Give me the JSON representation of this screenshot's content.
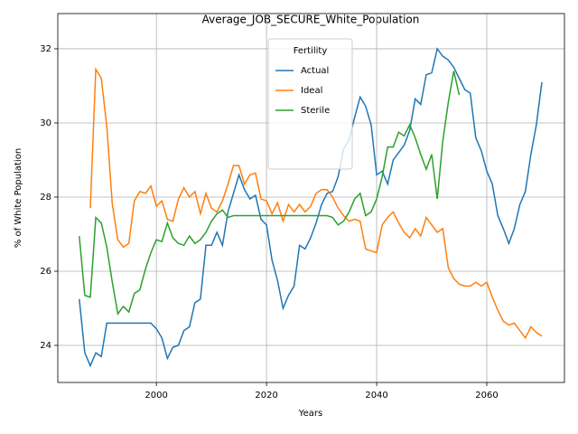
{
  "chart_data": {
    "type": "line",
    "title": "Average_JOB_SECURE_White_Population",
    "xlabel": "Years",
    "ylabel": "% of White Population",
    "x": [
      1986,
      1987,
      1988,
      1989,
      1990,
      1991,
      1992,
      1993,
      1994,
      1995,
      1996,
      1997,
      1998,
      1999,
      2000,
      2001,
      2002,
      2003,
      2004,
      2005,
      2006,
      2007,
      2008,
      2009,
      2010,
      2011,
      2012,
      2013,
      2014,
      2015,
      2016,
      2017,
      2018,
      2019,
      2020,
      2021,
      2022,
      2023,
      2024,
      2025,
      2026,
      2027,
      2028,
      2029,
      2030,
      2031,
      2032,
      2033,
      2034,
      2035,
      2036,
      2037,
      2038,
      2039,
      2040,
      2041,
      2042,
      2043,
      2044,
      2045,
      2046,
      2047,
      2048,
      2049,
      2050,
      2051,
      2052,
      2053,
      2054,
      2055,
      2056,
      2057,
      2058,
      2059,
      2060,
      2061,
      2062,
      2063,
      2064,
      2065,
      2066,
      2067,
      2068,
      2069,
      2070
    ],
    "series": [
      {
        "name": "Actual",
        "color": "#1f77b4",
        "values": [
          25.25,
          23.8,
          23.45,
          23.8,
          23.7,
          24.6,
          24.6,
          24.6,
          24.6,
          24.6,
          24.6,
          24.6,
          24.6,
          24.6,
          24.45,
          24.2,
          23.65,
          23.95,
          24.0,
          24.4,
          24.5,
          25.15,
          25.25,
          26.7,
          26.7,
          27.05,
          26.7,
          27.6,
          28.1,
          28.6,
          28.2,
          27.95,
          28.05,
          27.4,
          27.25,
          26.3,
          25.75,
          25.0,
          25.35,
          25.6,
          26.7,
          26.6,
          26.9,
          27.3,
          27.8,
          28.1,
          28.15,
          28.55,
          29.3,
          29.55,
          30.15,
          30.7,
          30.45,
          29.95,
          28.6,
          28.7,
          28.35,
          29.0,
          29.2,
          29.4,
          29.8,
          30.65,
          30.5,
          31.3,
          31.35,
          32.0,
          31.8,
          31.7,
          31.5,
          31.2,
          30.9,
          30.8,
          29.6,
          29.25,
          28.7,
          28.35,
          27.5,
          27.15,
          26.75,
          27.15,
          27.8,
          28.15,
          29.15,
          29.95,
          31.1
        ]
      },
      {
        "name": "Ideal",
        "color": "#ff7f0e",
        "values": [
          null,
          null,
          27.7,
          31.45,
          31.2,
          29.9,
          27.8,
          26.85,
          26.65,
          26.75,
          27.9,
          28.15,
          28.1,
          28.3,
          27.75,
          27.9,
          27.4,
          27.35,
          27.95,
          28.25,
          28.0,
          28.15,
          27.55,
          28.1,
          27.7,
          27.6,
          27.9,
          28.35,
          28.85,
          28.85,
          28.35,
          28.6,
          28.65,
          27.95,
          27.9,
          27.55,
          27.85,
          27.35,
          27.8,
          27.6,
          27.8,
          27.6,
          27.75,
          28.1,
          28.2,
          28.2,
          28.0,
          27.7,
          27.5,
          27.35,
          27.4,
          27.35,
          26.6,
          26.55,
          26.5,
          27.25,
          27.45,
          27.6,
          27.3,
          27.05,
          26.9,
          27.15,
          26.95,
          27.45,
          27.25,
          27.05,
          27.15,
          26.1,
          25.8,
          25.65,
          25.6,
          25.6,
          25.7,
          25.6,
          25.7,
          25.3,
          24.95,
          24.65,
          24.55,
          24.6,
          24.4,
          24.2,
          24.5,
          24.35,
          24.25
        ]
      },
      {
        "name": "Sterile",
        "color": "#2ca02c",
        "values": [
          26.95,
          25.35,
          25.3,
          27.45,
          27.3,
          26.65,
          25.7,
          24.85,
          25.05,
          24.9,
          25.4,
          25.5,
          26.05,
          26.5,
          26.85,
          26.8,
          27.3,
          26.9,
          26.75,
          26.7,
          26.95,
          26.75,
          26.85,
          27.05,
          27.35,
          27.55,
          27.65,
          27.45,
          27.5,
          27.5,
          27.5,
          27.5,
          27.5,
          27.5,
          27.5,
          27.5,
          27.5,
          27.5,
          27.5,
          27.5,
          27.5,
          27.5,
          27.5,
          27.5,
          27.5,
          27.5,
          27.45,
          27.25,
          27.35,
          27.6,
          27.95,
          28.1,
          27.5,
          27.6,
          27.95,
          28.55,
          29.35,
          29.35,
          29.75,
          29.65,
          29.95,
          29.6,
          29.15,
          28.75,
          29.15,
          27.95,
          29.5,
          30.55,
          31.4,
          30.75,
          null,
          null,
          null,
          null,
          null,
          null,
          null,
          null,
          null,
          null,
          null,
          null,
          null,
          null,
          null
        ]
      }
    ],
    "xlim": [
      1982.1,
      2074.1
    ],
    "xticks": [
      2000,
      2020,
      2040,
      2060
    ],
    "ylim": [
      23.0,
      32.95
    ],
    "yticks": [
      24,
      26,
      28,
      30,
      32
    ],
    "grid": true,
    "legend": {
      "title": "Fertility",
      "position": "upper center"
    }
  }
}
